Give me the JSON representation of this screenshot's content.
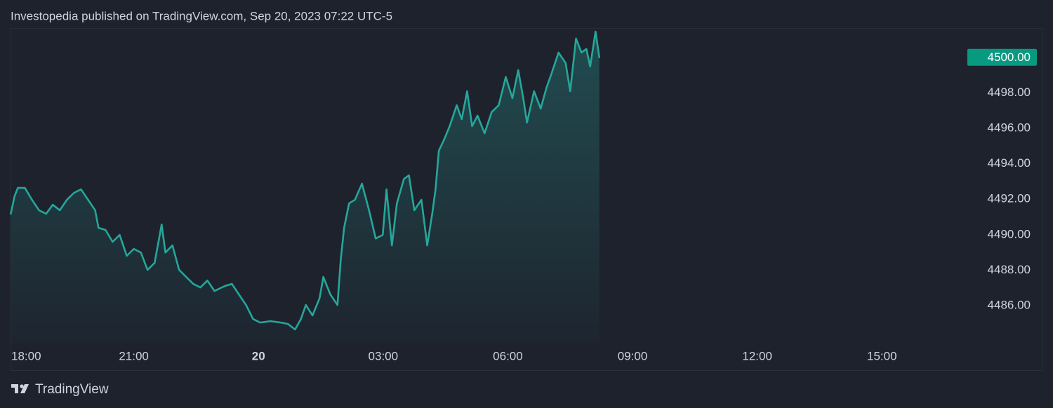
{
  "chart_data": {
    "type": "line",
    "title": "Investopedia published on TradingView.com, Sep 20, 2023 07:22 UTC-5",
    "brand": "TradingView",
    "color": "#26a69a",
    "grid": false,
    "x": [
      0.04,
      0.13,
      0.21,
      0.38,
      0.55,
      0.72,
      0.89,
      1.05,
      1.22,
      1.39,
      1.56,
      1.73,
      1.9,
      2.07,
      2.15,
      2.32,
      2.49,
      2.66,
      2.83,
      3.0,
      3.17,
      3.33,
      3.5,
      3.67,
      3.76,
      3.93,
      4.09,
      4.26,
      4.43,
      4.6,
      4.77,
      4.94,
      5.19,
      5.36,
      5.53,
      5.7,
      5.87,
      6.04,
      6.29,
      6.54,
      6.71,
      6.88,
      7.02,
      7.14,
      7.3,
      7.47,
      7.56,
      7.73,
      7.9,
      7.98,
      8.06,
      8.18,
      8.32,
      8.49,
      8.66,
      8.82,
      8.99,
      9.08,
      9.21,
      9.33,
      9.5,
      9.62,
      9.75,
      9.92,
      10.06,
      10.18,
      10.26,
      10.34,
      10.46,
      10.6,
      10.77,
      10.89,
      11.02,
      11.14,
      11.27,
      11.44,
      11.61,
      11.78,
      11.95,
      12.11,
      12.25,
      12.37,
      12.46,
      12.63,
      12.79,
      12.93,
      13.05,
      13.22,
      13.39,
      13.5,
      13.64,
      13.77,
      13.89,
      13.98,
      14.11,
      14.2
    ],
    "values": [
      4491.18,
      4492.17,
      4492.64,
      4492.64,
      4491.97,
      4491.38,
      4491.18,
      4491.69,
      4491.38,
      4491.97,
      4492.36,
      4492.56,
      4491.97,
      4491.38,
      4490.39,
      4490.27,
      4489.6,
      4489.99,
      4488.81,
      4489.2,
      4489.0,
      4488.02,
      4488.41,
      4490.58,
      4489.0,
      4489.4,
      4488.02,
      4487.62,
      4487.23,
      4487.03,
      4487.42,
      4486.83,
      4487.11,
      4487.23,
      4486.63,
      4486.04,
      4485.25,
      4485.05,
      4485.13,
      4485.05,
      4484.97,
      4484.66,
      4485.25,
      4486.04,
      4485.45,
      4486.43,
      4487.62,
      4486.63,
      4486.04,
      4488.61,
      4490.39,
      4491.77,
      4491.97,
      4492.88,
      4491.38,
      4489.79,
      4489.99,
      4492.56,
      4489.4,
      4491.77,
      4493.15,
      4493.35,
      4491.38,
      4491.97,
      4489.4,
      4491.18,
      4492.56,
      4494.74,
      4495.33,
      4496.12,
      4497.3,
      4496.51,
      4498.09,
      4496.12,
      4496.71,
      4495.72,
      4496.91,
      4497.3,
      4498.89,
      4497.7,
      4499.28,
      4497.7,
      4496.32,
      4498.09,
      4497.11,
      4498.29,
      4499.08,
      4500.27,
      4499.68,
      4498.09,
      4501.06,
      4500.27,
      4500.47,
      4499.48,
      4501.45,
      4500.0
    ],
    "xlim": [
      0,
      22.6
    ],
    "xticks": [
      {
        "value": 0,
        "label": "18:00"
      },
      {
        "value": 3,
        "label": "21:00"
      },
      {
        "value": 6,
        "label": "20"
      },
      {
        "value": 9,
        "label": "03:00"
      },
      {
        "value": 12,
        "label": "06:00"
      },
      {
        "value": 15,
        "label": "09:00"
      },
      {
        "value": 18,
        "label": "12:00"
      },
      {
        "value": 21,
        "label": "15:00"
      }
    ],
    "ylim": [
      4483.87,
      4501.65
    ],
    "yticks": [
      {
        "value": 4486,
        "label": "4486.00"
      },
      {
        "value": 4488,
        "label": "4488.00"
      },
      {
        "value": 4490,
        "label": "4490.00"
      },
      {
        "value": 4492,
        "label": "4492.00"
      },
      {
        "value": 4494,
        "label": "4494.00"
      },
      {
        "value": 4496,
        "label": "4496.00"
      },
      {
        "value": 4498,
        "label": "4498.00"
      }
    ],
    "last_price": {
      "value": 4500,
      "label": "4500.00"
    },
    "last_price_color": "#089981"
  }
}
